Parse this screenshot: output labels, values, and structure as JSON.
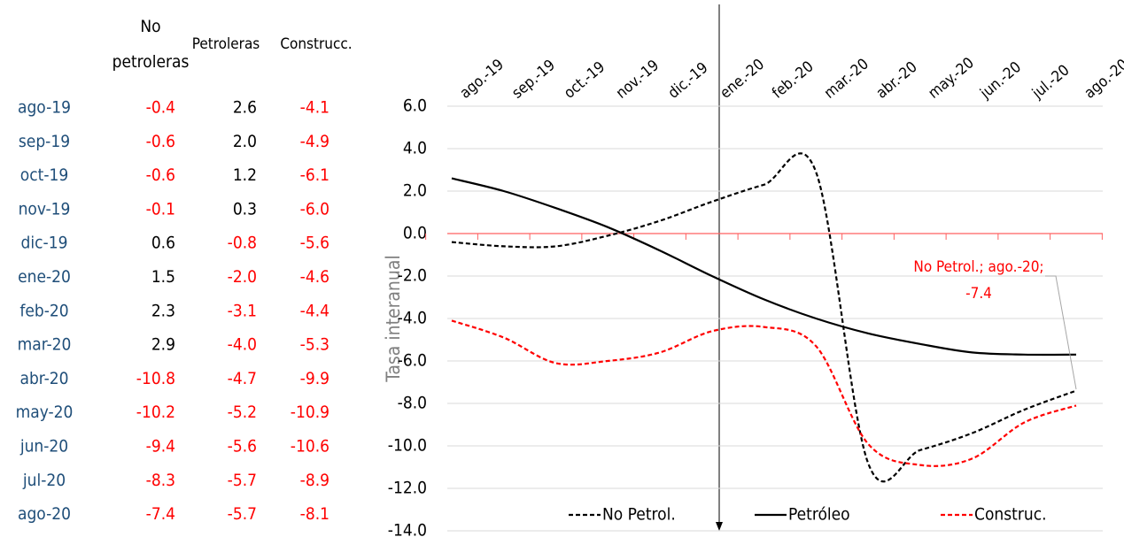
{
  "table": {
    "headers": [
      "No petroleras",
      "Petroleras",
      "Construcc."
    ],
    "rows": [
      [
        "ago-19",
        "-0.4",
        "2.6",
        "-4.1"
      ],
      [
        "sep-19",
        "-0.6",
        "2.0",
        "-4.9"
      ],
      [
        "oct-19",
        "-0.6",
        "1.2",
        "-6.1"
      ],
      [
        "nov-19",
        "-0.1",
        "0.3",
        "-6.0"
      ],
      [
        "dic-19",
        "0.6",
        "-0.8",
        "-5.6"
      ],
      [
        "ene-20",
        "1.5",
        "-2.0",
        "-4.6"
      ],
      [
        "feb-20",
        "2.3",
        "-3.1",
        "-4.4"
      ],
      [
        "mar-20",
        "2.9",
        "-4.0",
        "-5.3"
      ],
      [
        "abr-20",
        "-10.8",
        "-4.7",
        "-9.9"
      ],
      [
        "may-20",
        "-10.2",
        "-5.2",
        "-10.9"
      ],
      [
        "jun-20",
        "-9.4",
        "-5.6",
        "-10.6"
      ],
      [
        "jul-20",
        "-8.3",
        "-5.7",
        "-8.9"
      ],
      [
        "ago-20",
        "-7.4",
        "-5.7",
        "-8.1"
      ]
    ]
  },
  "chart_data": {
    "type": "line",
    "y_label": "Tasa interanual",
    "categories": [
      "ago.-19",
      "sep.-19",
      "oct.-19",
      "nov.-19",
      "dic.-19",
      "ene.-20",
      "feb.-20",
      "mar.-20",
      "abr.-20",
      "may.-20",
      "jun.-20",
      "jul.-20",
      "ago.-20"
    ],
    "series": [
      {
        "name": "No Petrol.",
        "color": "#000000",
        "dash": true,
        "values": [
          -0.4,
          -0.6,
          -0.6,
          -0.1,
          0.6,
          1.5,
          2.3,
          2.9,
          -10.8,
          -10.2,
          -9.4,
          -8.3,
          -7.4
        ]
      },
      {
        "name": "Petróleo",
        "color": "#000000",
        "dash": false,
        "values": [
          2.6,
          2.0,
          1.2,
          0.3,
          -0.8,
          -2.0,
          -3.1,
          -4.0,
          -4.7,
          -5.2,
          -5.6,
          -5.7,
          -5.7
        ]
      },
      {
        "name": "Construc.",
        "color": "#ff0000",
        "dash": true,
        "values": [
          -4.1,
          -4.9,
          -6.1,
          -6.0,
          -5.6,
          -4.6,
          -4.4,
          -5.3,
          -9.9,
          -10.9,
          -10.6,
          -8.9,
          -8.1
        ]
      }
    ],
    "ylim": [
      -14,
      6
    ],
    "yticks": [
      {
        "value": 6,
        "label": "6.0"
      },
      {
        "value": 4,
        "label": "4.0"
      },
      {
        "value": 2,
        "label": "2.0"
      },
      {
        "value": 0,
        "label": "0.0"
      },
      {
        "value": -2,
        "label": "-2.0"
      },
      {
        "value": -4,
        "label": "-4.0"
      },
      {
        "value": -6,
        "label": "-6.0"
      },
      {
        "value": -8,
        "label": "-8.0"
      },
      {
        "value": -10,
        "label": "-10.0"
      },
      {
        "value": -12,
        "label": "-12.0"
      },
      {
        "value": -14,
        "label": "-14.0"
      }
    ],
    "grid": true,
    "annotations": [
      {
        "lines": [
          "No Petrol.; ago.-20;",
          "-7.4"
        ],
        "color": "#ff0000"
      }
    ]
  }
}
